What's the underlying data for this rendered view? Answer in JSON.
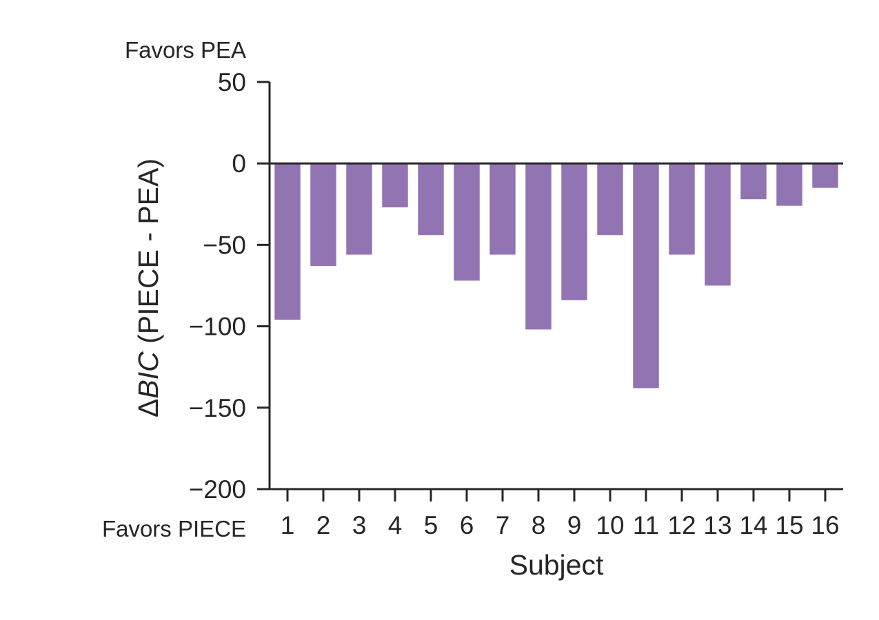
{
  "chart_data": {
    "type": "bar",
    "categories": [
      "1",
      "2",
      "3",
      "4",
      "5",
      "6",
      "7",
      "8",
      "9",
      "10",
      "11",
      "12",
      "13",
      "14",
      "15",
      "16"
    ],
    "values": [
      -96,
      -63,
      -56,
      -27,
      -44,
      -72,
      -56,
      -102,
      -84,
      -44,
      -138,
      -56,
      -75,
      -22,
      -26,
      -15
    ],
    "xlabel": "Subject",
    "ylabel_prefix": "Δ",
    "ylabel_italic": "BIC",
    "ylabel_suffix": " (PIECE - PEA)",
    "ylim": [
      -200,
      50
    ],
    "yticks": [
      50,
      0,
      -50,
      -100,
      -150,
      -200
    ],
    "ytick_labels": [
      "50",
      "0",
      "−50",
      "−100",
      "−150",
      "−200"
    ],
    "annotation_top": "Favors PEA",
    "annotation_bottom": "Favors PIECE",
    "bar_color": "#9274b2",
    "axis_color": "#262626",
    "grid": false,
    "zero_line": true
  }
}
